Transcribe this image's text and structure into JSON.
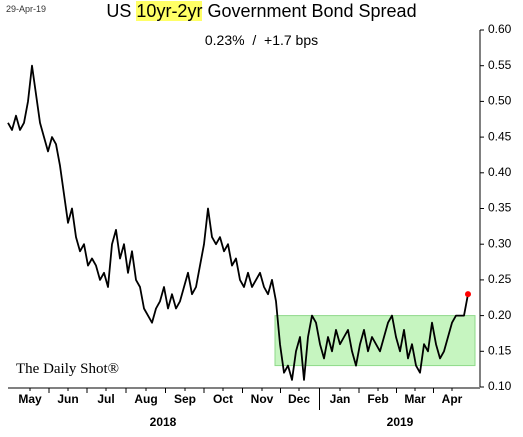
{
  "chart_data": {
    "type": "line",
    "date_stamp": "29-Apr-19",
    "title_parts": [
      "US",
      "10yr-2yr",
      "Government Bond Spread"
    ],
    "subtitle": "0.23%  /  +1.7 bps",
    "watermark": "The Daily Shot®",
    "series": [
      {
        "name": "US 10yr-2yr spread",
        "color": "#000000",
        "values": [
          0.47,
          0.46,
          0.48,
          0.46,
          0.47,
          0.5,
          0.55,
          0.51,
          0.47,
          0.45,
          0.43,
          0.45,
          0.44,
          0.41,
          0.37,
          0.33,
          0.35,
          0.31,
          0.29,
          0.3,
          0.27,
          0.28,
          0.27,
          0.25,
          0.26,
          0.24,
          0.3,
          0.32,
          0.28,
          0.3,
          0.26,
          0.29,
          0.25,
          0.24,
          0.21,
          0.2,
          0.19,
          0.21,
          0.22,
          0.24,
          0.21,
          0.23,
          0.21,
          0.22,
          0.24,
          0.26,
          0.23,
          0.24,
          0.27,
          0.3,
          0.35,
          0.31,
          0.3,
          0.31,
          0.29,
          0.3,
          0.27,
          0.28,
          0.25,
          0.24,
          0.26,
          0.24,
          0.25,
          0.26,
          0.24,
          0.23,
          0.25,
          0.22,
          0.16,
          0.12,
          0.13,
          0.11,
          0.15,
          0.17,
          0.11,
          0.17,
          0.2,
          0.19,
          0.16,
          0.14,
          0.17,
          0.15,
          0.18,
          0.16,
          0.17,
          0.18,
          0.15,
          0.13,
          0.16,
          0.18,
          0.15,
          0.17,
          0.16,
          0.15,
          0.17,
          0.19,
          0.2,
          0.17,
          0.15,
          0.18,
          0.14,
          0.16,
          0.13,
          0.12,
          0.16,
          0.15,
          0.19,
          0.16,
          0.14,
          0.15,
          0.17,
          0.19,
          0.2,
          0.2,
          0.2,
          0.23
        ]
      }
    ],
    "end_marker_color": "#ff0000",
    "highlight": {
      "x": [
        66.75,
        116.75
      ],
      "y": [
        0.13,
        0.2
      ],
      "color": "#c6f5c0",
      "edge": "#8fd98a"
    },
    "xlim": [
      -2,
      118
    ],
    "xticks": [
      {
        "value": 5.5,
        "label": "May"
      },
      {
        "value": 15,
        "label": "Jun"
      },
      {
        "value": 24.5,
        "label": "Jul"
      },
      {
        "value": 34.5,
        "label": "Aug"
      },
      {
        "value": 44.25,
        "label": "Sep"
      },
      {
        "value": 53.75,
        "label": "Oct"
      },
      {
        "value": 63.5,
        "label": "Nov"
      },
      {
        "value": 72.75,
        "label": "Dec"
      },
      {
        "value": 83,
        "label": "Jan"
      },
      {
        "value": 92.5,
        "label": "Feb"
      },
      {
        "value": 101.75,
        "label": "Mar"
      },
      {
        "value": 111,
        "label": "Apr"
      }
    ],
    "years": [
      {
        "value": 38.75,
        "label": "2018"
      },
      {
        "value": 98,
        "label": "2019"
      }
    ],
    "ylim": [
      0.1,
      0.6
    ],
    "yticks": [
      {
        "value": 0.1,
        "label": "0.10"
      },
      {
        "value": 0.15,
        "label": "0.15"
      },
      {
        "value": 0.2,
        "label": "0.20"
      },
      {
        "value": 0.25,
        "label": "0.25"
      },
      {
        "value": 0.3,
        "label": "0.30"
      },
      {
        "value": 0.35,
        "label": "0.35"
      },
      {
        "value": 0.4,
        "label": "0.40"
      },
      {
        "value": 0.45,
        "label": "0.45"
      },
      {
        "value": 0.5,
        "label": "0.50"
      },
      {
        "value": 0.55,
        "label": "0.55"
      },
      {
        "value": 0.6,
        "label": "0.60"
      }
    ],
    "grid": false
  }
}
